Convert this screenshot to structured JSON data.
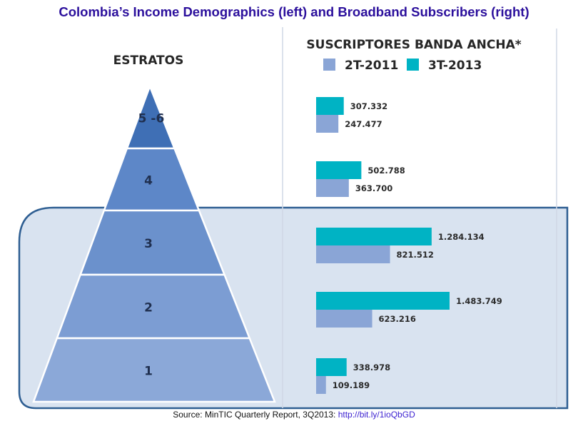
{
  "title": "Colombia’s Income Demographics (left) and Broadband Subscribers (right)",
  "source": {
    "prefix": "Source: MinTIC Quarterly Report, 3Q2013: ",
    "link_text": "http://bit.ly/1ioQbGD"
  },
  "pyramid": {
    "title": "ESTRATOS",
    "levels": [
      "5 -6",
      "4",
      "3",
      "2",
      "1"
    ]
  },
  "chart_data": {
    "type": "bar",
    "title": "SUSCRIPTORES BANDA ANCHA*",
    "orientation": "horizontal",
    "categories": [
      "5 -6",
      "4",
      "3",
      "2",
      "1"
    ],
    "series": [
      {
        "name": "3T-2013",
        "color": "#00b3c4",
        "values": [
          307332,
          502788,
          1284134,
          1483749,
          338978
        ],
        "labels": [
          "307.332",
          "502.788",
          "1.284.134",
          "1.483.749",
          "338.978"
        ]
      },
      {
        "name": "2T-2011",
        "color": "#8aa5d6",
        "values": [
          247477,
          363700,
          821512,
          623216,
          109189
        ],
        "labels": [
          "247.477",
          "363.700",
          "821.512",
          "623.216",
          "109.189"
        ]
      }
    ],
    "legend_order": [
      "2T-2011",
      "3T-2013"
    ],
    "xlim": [
      0,
      1500000
    ],
    "grid": false,
    "legend_position": "top"
  },
  "colors": {
    "title": "#2b0f9c",
    "highlight_fill": "#d9e3f0",
    "highlight_border": "#2e5e92",
    "pyramid_top": "#3f6fb5",
    "pyramid_mid": "#5d87c8",
    "pyramid_low": "#8ba8d8"
  }
}
